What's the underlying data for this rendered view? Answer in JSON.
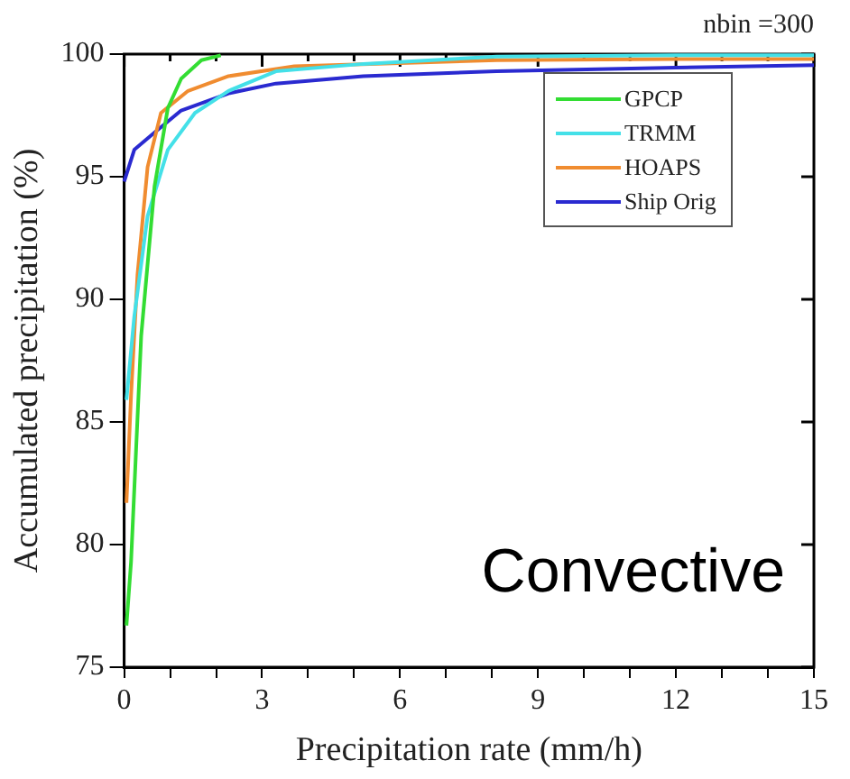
{
  "chart_data": {
    "type": "line",
    "xlabel": "Precipitation rate (mm/h)",
    "ylabel": "Accumulated precipitation (%)",
    "annotations": [
      "nbin =300",
      "Convective"
    ],
    "xlim": [
      0,
      15
    ],
    "ylim": [
      75,
      100
    ],
    "xticks": [
      0,
      {
        "value": 1,
        "label": null
      },
      {
        "value": 2,
        "label": null
      },
      3,
      {
        "value": 4,
        "label": null
      },
      {
        "value": 5,
        "label": null
      },
      6,
      {
        "value": 7,
        "label": null
      },
      {
        "value": 8,
        "label": null
      },
      9,
      {
        "value": 10,
        "label": null
      },
      {
        "value": 11,
        "label": null
      },
      12,
      {
        "value": 13,
        "label": null
      },
      {
        "value": 14,
        "label": null
      },
      15
    ],
    "yticks": [
      75,
      80,
      85,
      90,
      95,
      100
    ],
    "grid": false,
    "legend": "top right",
    "marker": "none",
    "line_style": "solid",
    "series": [
      {
        "name": "GPCP",
        "color": "#33dd33",
        "x": [
          0.05,
          0.15,
          0.37,
          0.66,
          0.95,
          1.24,
          1.68,
          2.1
        ],
        "values": [
          76.7,
          79.3,
          88.5,
          94.6,
          97.8,
          99,
          99.75,
          99.95
        ]
      },
      {
        "name": "TRMM",
        "color": "#44e0e8",
        "x": [
          0.05,
          0.22,
          0.51,
          0.95,
          1.54,
          2.27,
          3.3,
          5.2,
          8.1,
          12,
          15
        ],
        "values": [
          85.9,
          89.3,
          93.4,
          96.1,
          97.6,
          98.5,
          99.3,
          99.6,
          99.9,
          99.95,
          99.95
        ]
      },
      {
        "name": "HOAPS",
        "color": "#f08c30",
        "x": [
          0.05,
          0.15,
          0.29,
          0.51,
          0.8,
          1.39,
          2.27,
          3.7,
          8.1,
          12,
          15
        ],
        "values": [
          81.7,
          86.1,
          91,
          95.4,
          97.6,
          98.5,
          99.1,
          99.5,
          99.75,
          99.8,
          99.8
        ]
      },
      {
        "name": "Ship Orig",
        "color": "#2a2ad0",
        "x": [
          0,
          0.22,
          0.66,
          1.24,
          2.27,
          3.3,
          5.2,
          8.1,
          12,
          15
        ],
        "values": [
          94.8,
          96.1,
          96.8,
          97.7,
          98.4,
          98.8,
          99.1,
          99.3,
          99.45,
          99.55
        ]
      }
    ]
  }
}
